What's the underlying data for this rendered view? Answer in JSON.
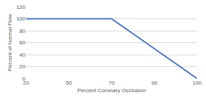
{
  "chart_data": {
    "type": "line",
    "x_label": "Percent Coronary Occlusion",
    "y_label": "Percent of Normal Flow",
    "categories": [
      "20",
      "50",
      "70",
      "90",
      "100"
    ],
    "values": [
      100,
      100,
      100,
      50,
      0
    ],
    "color": "#4472c4",
    "ylim": [
      0,
      120
    ],
    "yticks": [
      0,
      20,
      40,
      60,
      80,
      100,
      120
    ],
    "grid": true
  }
}
